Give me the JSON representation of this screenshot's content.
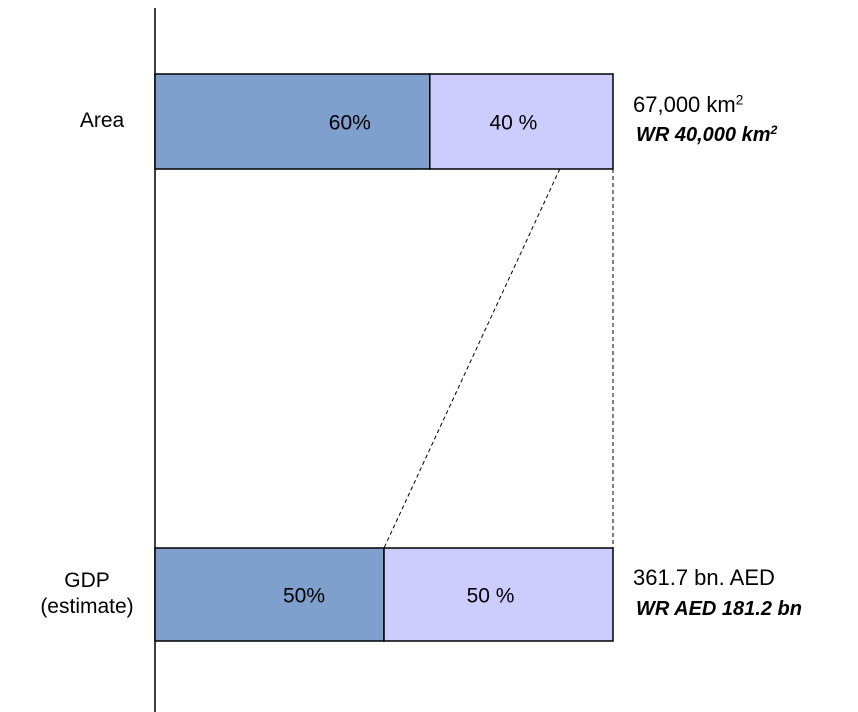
{
  "colors": {
    "primary": "#7f9fcc",
    "secondary": "#ccccff",
    "wr_text": "#7f9fcc"
  },
  "chart_data": {
    "type": "bar",
    "orientation": "horizontal-stacked-100",
    "categories": [
      "Area",
      "GDP (estimate)"
    ],
    "category_lines": [
      [
        "Area"
      ],
      [
        "GDP",
        "(estimate)"
      ]
    ],
    "series": [
      {
        "values": [
          60,
          50
        ],
        "labels": [
          "60%",
          "50%"
        ]
      },
      {
        "values": [
          40,
          50
        ],
        "labels": [
          "40 %",
          "50 %"
        ]
      }
    ],
    "totals": [
      {
        "main": "67,000 km",
        "main_sup": "2",
        "wr": "WR 40,000 km",
        "wr_sup": "2"
      },
      {
        "main": "361.7 bn. AED",
        "main_sup": "",
        "wr": "WR AED 181.2 bn",
        "wr_sup": ""
      }
    ],
    "xlim": [
      0,
      100
    ]
  }
}
